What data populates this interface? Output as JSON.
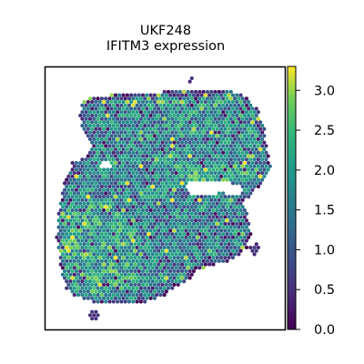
{
  "chart_data": {
    "type": "heatmap",
    "title": "UKF248",
    "subtitle": "IFITM3 expression",
    "colormap": "viridis",
    "colorbar": {
      "range": [
        0.0,
        3.3
      ],
      "ticks": [
        0.0,
        0.5,
        1.0,
        1.5,
        2.0,
        2.5,
        3.0
      ],
      "tick_labels": [
        "0.0",
        "0.5",
        "1.0",
        "1.5",
        "2.0",
        "2.5",
        "3.0"
      ]
    },
    "xaxis": {
      "label": "",
      "ticks": []
    },
    "yaxis": {
      "label": "",
      "ticks": []
    },
    "grid": false,
    "spot_value_distribution": {
      "mean": 1.8,
      "min": 0.0,
      "max": 3.3
    }
  }
}
